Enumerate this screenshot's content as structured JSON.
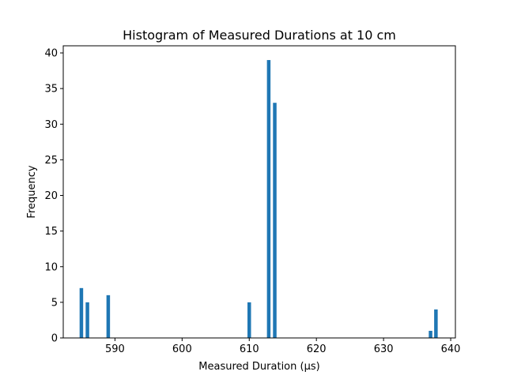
{
  "chart_data": {
    "type": "bar",
    "title": "Histogram of Measured Durations at 10 cm",
    "xlabel": "Measured Duration (µs)",
    "ylabel": "Frequency",
    "xlim": [
      582.3,
      640.7
    ],
    "ylim": [
      0,
      41
    ],
    "grid": false,
    "legend": "none",
    "bar_color": "#1f77b4",
    "bin_width": 0.53,
    "x_ticks": [
      590,
      600,
      610,
      620,
      630,
      640
    ],
    "y_ticks": [
      0,
      5,
      10,
      15,
      20,
      25,
      30,
      35,
      40
    ],
    "bins": [
      {
        "x": 585.0,
        "value": 7
      },
      {
        "x": 585.9,
        "value": 5
      },
      {
        "x": 589.0,
        "value": 6
      },
      {
        "x": 610.0,
        "value": 5
      },
      {
        "x": 612.9,
        "value": 39
      },
      {
        "x": 613.8,
        "value": 33
      },
      {
        "x": 637.0,
        "value": 1
      },
      {
        "x": 637.8,
        "value": 4
      }
    ]
  }
}
